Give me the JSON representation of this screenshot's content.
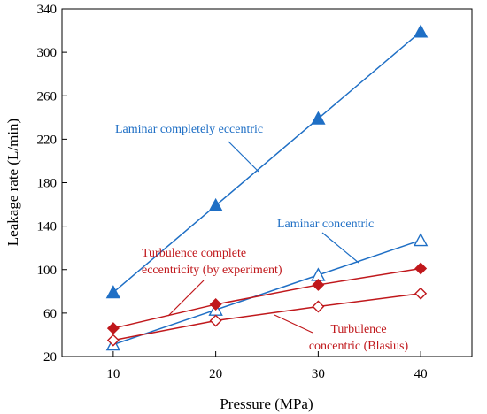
{
  "chart_data": {
    "type": "line",
    "xlabel": "Pressure (MPa)",
    "ylabel": "Leakage rate (L/min)",
    "xlim": [
      5,
      45
    ],
    "ylim": [
      20,
      340
    ],
    "xticks": [
      10,
      20,
      30,
      40
    ],
    "yticks": [
      20,
      60,
      100,
      140,
      180,
      220,
      260,
      300,
      340
    ],
    "grid": false,
    "x": [
      10,
      20,
      30,
      40
    ],
    "series": [
      {
        "name": "Laminar completely eccentric",
        "values": [
          79,
          159,
          239,
          319
        ],
        "color": "#1f6fc5",
        "marker": "triangle-filled"
      },
      {
        "name": "Laminar concentric",
        "values": [
          31,
          63,
          95,
          127
        ],
        "color": "#1f6fc5",
        "marker": "triangle-open"
      },
      {
        "name": "Turbulence complete eccentricity (by experiment)",
        "values": [
          46,
          68,
          86,
          101
        ],
        "color": "#c0181c",
        "marker": "diamond-filled"
      },
      {
        "name": "Turbulence concentric (Blasius)",
        "values": [
          35,
          53,
          66,
          78
        ],
        "color": "#c0181c",
        "marker": "diamond-open"
      }
    ],
    "annotations": [
      {
        "lines": [
          "Laminar completely eccentric"
        ],
        "color": "#1f6fc5"
      },
      {
        "lines": [
          "Laminar concentric"
        ],
        "color": "#1f6fc5"
      },
      {
        "lines": [
          "Turbulence complete",
          "eccentricity (by experiment)"
        ],
        "color": "#c0181c"
      },
      {
        "lines": [
          "Turbulence",
          "concentric (Blasius)"
        ],
        "color": "#c0181c"
      }
    ]
  }
}
